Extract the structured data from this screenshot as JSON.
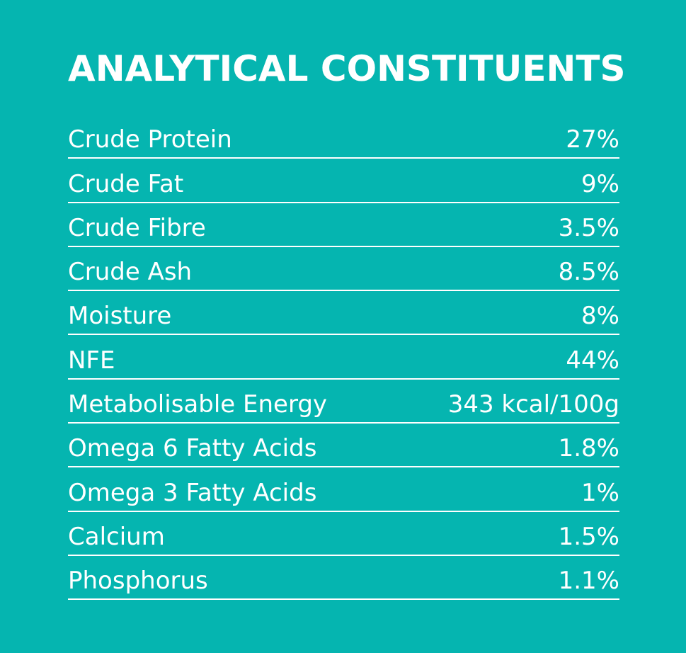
{
  "title": "ANALYTICAL CONSTITUENTS",
  "colors": {
    "background": "#05b5b0",
    "text": "#ffffff",
    "rule": "#ffffff"
  },
  "rows": [
    {
      "label": "Crude Protein",
      "value": "27%"
    },
    {
      "label": "Crude Fat",
      "value": "9%"
    },
    {
      "label": "Crude Fibre",
      "value": "3.5%"
    },
    {
      "label": "Crude Ash",
      "value": "8.5%"
    },
    {
      "label": "Moisture",
      "value": "8%"
    },
    {
      "label": "NFE",
      "value": "44%"
    },
    {
      "label": "Metabolisable Energy",
      "value": "343 kcal/100g"
    },
    {
      "label": "Omega 6 Fatty Acids",
      "value": "1.8%"
    },
    {
      "label": "Omega 3 Fatty Acids",
      "value": "1%"
    },
    {
      "label": "Calcium",
      "value": "1.5%"
    },
    {
      "label": "Phosphorus",
      "value": "1.1%"
    }
  ]
}
